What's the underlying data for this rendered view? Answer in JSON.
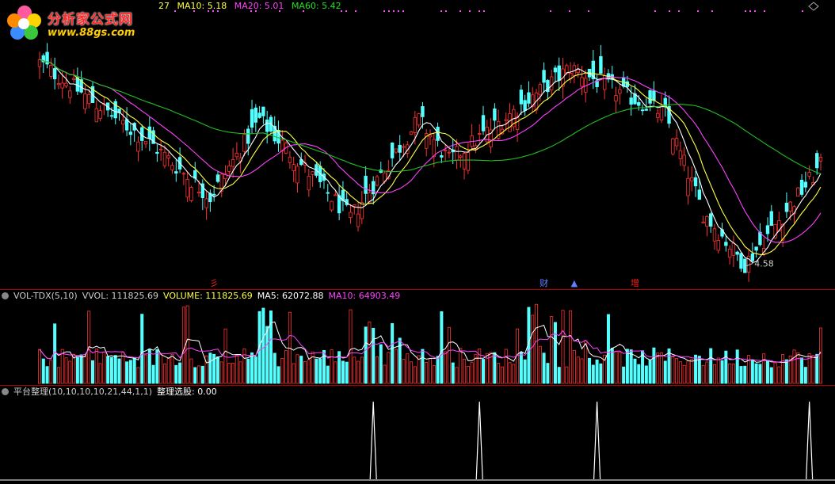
{
  "main_header": {
    "prefix": "27",
    "ma10": "MA10: 5.18",
    "ma20": "MA20: 5.01",
    "ma60": "MA60: 5.42"
  },
  "logo": {
    "name": "分析家公式网",
    "url": "www.88gs.com"
  },
  "markers": [
    {
      "label": "彡",
      "color": "#ff2020"
    },
    {
      "label": "财",
      "color": "#6080ff"
    },
    {
      "label": "▲",
      "color": "#6080ff"
    },
    {
      "label": "增",
      "color": "#ff2020"
    }
  ],
  "low_label": "4.58",
  "vol_header": {
    "name": "VOL-TDX(5,10)",
    "vvol": "VVOL: 111825.69",
    "volume": "VOLUME: 111825.69",
    "ma5": "MA5: 62072.88",
    "ma10": "MA10: 64903.49"
  },
  "ind_header": {
    "name": "平台整理(10,10,10,10,21,44,1,1)",
    "value": "整理选股: 0.00"
  },
  "colors": {
    "up": "#ff3232",
    "down": "#54ffff",
    "ma5": "#ffffff",
    "ma10": "#ffff40",
    "ma20": "#ff40ff",
    "ma60": "#20c020",
    "grid": "#b00000"
  },
  "chart_data": [
    {
      "type": "candlestick",
      "title": "",
      "series": [
        {
          "name": "MA10"
        },
        {
          "name": "MA20"
        },
        {
          "name": "MA60"
        }
      ],
      "low_annotation": 4.58,
      "ylim": [
        4.4,
        7.0
      ],
      "key_points": [
        {
          "t": 0,
          "price": 6.55
        },
        {
          "t": 30,
          "price": 5.75
        },
        {
          "t": 45,
          "price": 5.25
        },
        {
          "t": 58,
          "price": 6.0
        },
        {
          "t": 82,
          "price": 5.05
        },
        {
          "t": 100,
          "price": 6.0
        },
        {
          "t": 108,
          "price": 5.6
        },
        {
          "t": 140,
          "price": 6.5
        },
        {
          "t": 165,
          "price": 6.05
        },
        {
          "t": 175,
          "price": 5.1
        },
        {
          "t": 186,
          "price": 4.6
        },
        {
          "t": 206,
          "price": 5.55
        }
      ]
    },
    {
      "type": "bar",
      "title": "VOL-TDX(5,10)",
      "series": [
        {
          "name": "VOLUME",
          "last": 111825.69
        },
        {
          "name": "MA5",
          "last": 62072.88
        },
        {
          "name": "MA10",
          "last": 64903.49
        }
      ]
    },
    {
      "type": "line",
      "title": "平台整理(10,10,10,10,21,44,1,1)",
      "series": [
        {
          "name": "整理选股",
          "last": 0.0
        }
      ],
      "spikes": [
        88,
        116,
        147,
        203
      ]
    }
  ]
}
